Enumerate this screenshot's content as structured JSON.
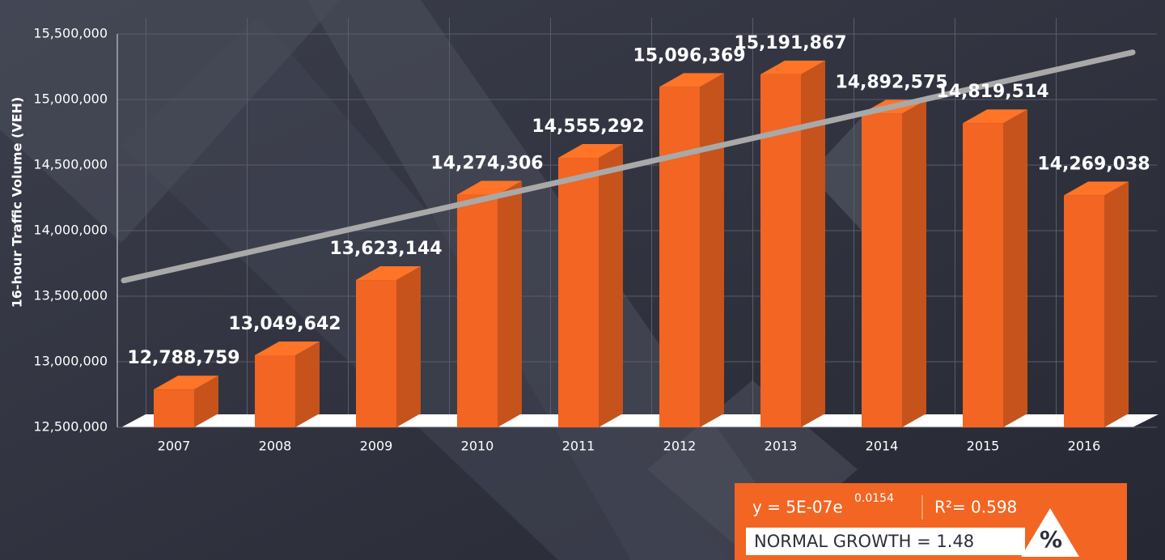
{
  "chart_data": {
    "type": "bar3d",
    "y_axis_label": "16-hour Traffic Volume (VEH)",
    "categories": [
      "2007",
      "2008",
      "2009",
      "2010",
      "2011",
      "2012",
      "2013",
      "2014",
      "2015",
      "2016"
    ],
    "values": [
      12788759,
      13049642,
      13623144,
      14274306,
      14555292,
      15096369,
      15191867,
      14892575,
      14819514,
      14269038
    ],
    "value_labels": [
      "12,788,759",
      "13,049,642",
      "13,623,144",
      "14,274,306",
      "14,555,292",
      "15,096,369",
      "15,191,867",
      "14,892,575",
      "14,819,514",
      "14,269,038"
    ],
    "color": "#f26522",
    "ylim": [
      12500000,
      15500000
    ],
    "yticks": [
      {
        "value": 12500000,
        "label": "12,500,000"
      },
      {
        "value": 13000000,
        "label": "13,000,000"
      },
      {
        "value": 13500000,
        "label": "13,500,000"
      },
      {
        "value": 14000000,
        "label": "14,000,000"
      },
      {
        "value": 14500000,
        "label": "14,500,000"
      },
      {
        "value": 15000000,
        "label": "15,000,000"
      },
      {
        "value": 15500000,
        "label": "15,500,000"
      }
    ],
    "grid": true,
    "trendline": {
      "color": "#a9a9a9",
      "values": [
        13620000,
        15360000
      ]
    },
    "annotation": {
      "equation": "y = 5E-07e",
      "equation_exponent": "0.0154",
      "r_squared": "R²= 0.598",
      "growth": "NORMAL GROWTH = 1.48",
      "growth_unit": "%"
    }
  }
}
